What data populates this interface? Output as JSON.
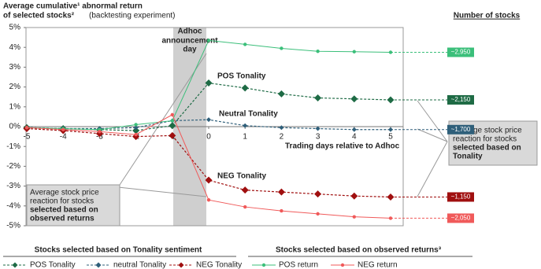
{
  "chart_data": {
    "type": "line",
    "title": [
      "Average cumulative¹ abnormal return",
      "of selected stocks²"
    ],
    "subtitle": "(backtesting experiment)",
    "right_header": "Number of stocks",
    "x_label": "Trading days relative to Adhoc",
    "x": [
      -5,
      -4,
      -3,
      -2,
      -1,
      0,
      1,
      2,
      3,
      4,
      5
    ],
    "xlim": [
      -5,
      5
    ],
    "xticks": [
      -5,
      -4,
      -3,
      -2,
      -1,
      0,
      1,
      2,
      3,
      4,
      5
    ],
    "ylim": [
      -5,
      5
    ],
    "yticks": [
      {
        "value": -5,
        "label": "-5%"
      },
      {
        "value": -4,
        "label": "-4%"
      },
      {
        "value": -3,
        "label": "-3%"
      },
      {
        "value": -2,
        "label": "-2%"
      },
      {
        "value": -1,
        "label": "-1%"
      },
      {
        "value": 0,
        "label": "0%"
      },
      {
        "value": 1,
        "label": "1%"
      },
      {
        "value": 2,
        "label": "2%"
      },
      {
        "value": 3,
        "label": "3%"
      },
      {
        "value": 4,
        "label": "4%"
      },
      {
        "value": 5,
        "label": "5%"
      }
    ],
    "grid": false,
    "annotations": [
      "Adhoc",
      "announcement",
      "day",
      "POS Tonality",
      "Neutral Tonality",
      "NEG Tonality"
    ],
    "callouts": [
      [
        "Average stock price",
        "reaction for stocks",
        "selected based on",
        "Tonality"
      ],
      [
        "Average stock price",
        "reaction for stocks",
        "selected based on",
        "observed returns"
      ]
    ],
    "series_groups": [
      {
        "name": "Stocks selected based on Tonality sentiment",
        "series": [
          {
            "name": "POS Tonality",
            "color": "#1e6b45",
            "style": "dashed",
            "marker": "diamond-large",
            "end_label": "~2,150",
            "values": [
              -0.05,
              -0.1,
              -0.15,
              -0.2,
              0.05,
              2.2,
              1.95,
              1.65,
              1.45,
              1.4,
              1.35
            ]
          },
          {
            "name": "neutral Tonality",
            "color": "#2f5f7a",
            "style": "dashed",
            "marker": "diamond-small",
            "end_label": "~1,700",
            "values": [
              -0.05,
              -0.1,
              -0.1,
              -0.05,
              0.3,
              0.35,
              0.05,
              -0.05,
              -0.1,
              -0.15,
              -0.15
            ]
          },
          {
            "name": "NEG Tonality",
            "color": "#a00f0f",
            "style": "dashed",
            "marker": "diamond-large",
            "end_label": "~1,150",
            "values": [
              -0.1,
              -0.2,
              -0.35,
              -0.5,
              -0.45,
              -2.7,
              -3.2,
              -3.3,
              -3.4,
              -3.5,
              -3.55
            ]
          }
        ]
      },
      {
        "name": "Stocks selected based on observed returns³",
        "series": [
          {
            "name": "POS return",
            "color": "#3bbf7a",
            "style": "solid",
            "marker": "dot",
            "end_label": "~2,950",
            "values": [
              -0.05,
              -0.1,
              -0.15,
              0.1,
              0.3,
              4.35,
              4.15,
              3.95,
              3.8,
              3.78,
              3.75
            ]
          },
          {
            "name": "NEG return",
            "color": "#f05a5a",
            "style": "solid",
            "marker": "dot",
            "end_label": "~2,050",
            "values": [
              -0.05,
              -0.15,
              -0.25,
              -0.4,
              0.6,
              -3.7,
              -4.05,
              -4.25,
              -4.4,
              -4.55,
              -4.62
            ]
          }
        ]
      }
    ]
  }
}
